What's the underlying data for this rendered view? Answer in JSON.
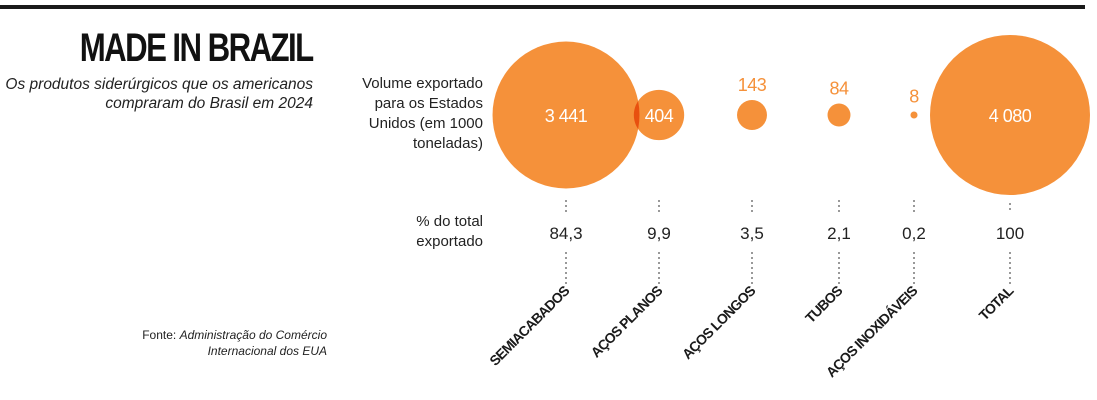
{
  "header": {
    "title": "MADE IN BRAZIL",
    "subtitle": "Os produtos siderúrgicos que os americanos compraram do Brasil em 2024"
  },
  "source": {
    "label": "Fonte:",
    "text_line1": "Administração do Comércio",
    "text_line2": "Internacional dos EUA"
  },
  "row_labels": {
    "volume": "Volume exportado para os Estados Unidos (em 1000 toneladas)",
    "percent": "% do total exportado"
  },
  "colors": {
    "bubble": "#f5913a",
    "overlap": "#e8500f",
    "label_orange": "#f5913a"
  },
  "chart_data": {
    "type": "bubble",
    "title": "MADE IN BRAZIL",
    "categories": [
      "SEMIACABADOS",
      "AÇOS PLANOS",
      "AÇOS LONGOS",
      "TUBOS",
      "AÇOS INOXIDÁVEIS",
      "TOTAL"
    ],
    "volume_labels": [
      "3 441",
      "404",
      "143",
      "84",
      "8",
      "4 080"
    ],
    "volume": [
      3441,
      404,
      143,
      84,
      8,
      4080
    ],
    "percent_labels": [
      "84,3",
      "9,9",
      "3,5",
      "2,1",
      "0,2",
      "100"
    ],
    "percent": [
      84.3,
      9.9,
      3.5,
      2.1,
      0.2,
      100
    ]
  }
}
